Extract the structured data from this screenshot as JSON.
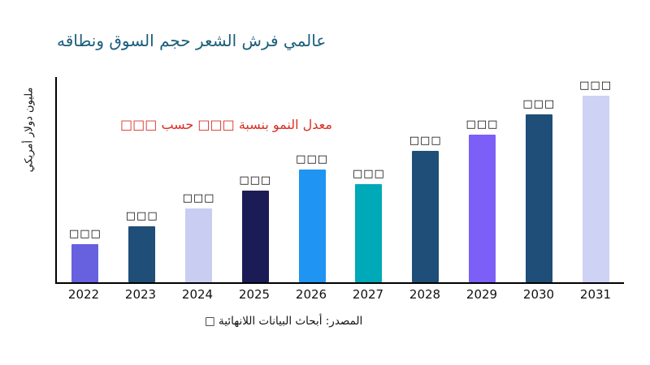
{
  "title": "عالمي فرش الشعر حجم السوق ونطاقه",
  "y_axis_label": "مليون دولار أمريكي",
  "growth_annotation": "معدل النمو بنسبة □□□ حسب □□□",
  "source": "المصدر: أبحاث البيانات اللانهائية □",
  "chart_data": {
    "type": "bar",
    "title": "عالمي فرش الشعر حجم السوق ونطاقه",
    "xlabel": "",
    "ylabel": "مليون دولار أمريكي",
    "categories": [
      "2022",
      "2023",
      "2024",
      "2025",
      "2026",
      "2027",
      "2028",
      "2029",
      "2030",
      "2031"
    ],
    "values": [
      47,
      69,
      91,
      113,
      139,
      121,
      162,
      182,
      207,
      230
    ],
    "bar_labels": [
      "□□□",
      "□□□",
      "□□□",
      "□□□",
      "□□□",
      "□□□",
      "□□□",
      "□□□",
      "□□□",
      "□□□"
    ],
    "bar_colors": [
      "#6761e0",
      "#1f4e79",
      "#c9cdf2",
      "#1b1c55",
      "#2094f3",
      "#00a9b8",
      "#1f4e79",
      "#7b5ff6",
      "#1f4e79",
      "#ced2f5"
    ],
    "ylim": [
      0,
      253
    ],
    "grid": false,
    "legend": false,
    "annotation": "معدل النمو بنسبة □□□ حسب □□□",
    "note": "قيم الأعمدة نسبية — لا توجد علامات محور ظاهرة"
  }
}
